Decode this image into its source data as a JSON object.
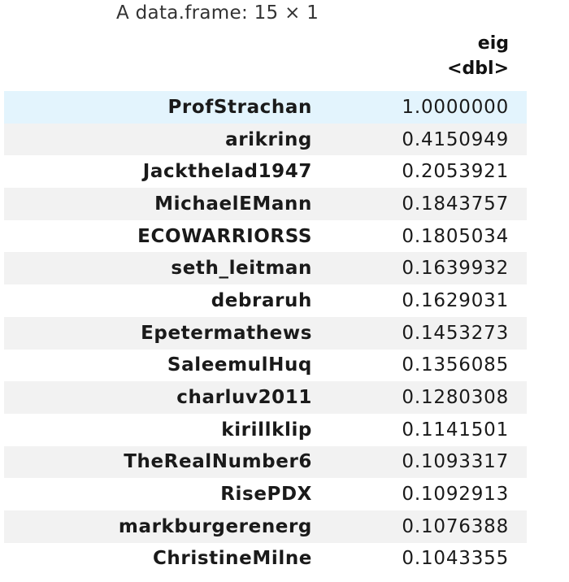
{
  "caption": "A data.frame: 15 × 1",
  "columns": [
    {
      "name": "eig",
      "type": "<dbl>"
    }
  ],
  "rows": [
    {
      "name": "ProfStrachan",
      "eig": "1.0000000"
    },
    {
      "name": "arikring",
      "eig": "0.4150949"
    },
    {
      "name": "Jackthelad1947",
      "eig": "0.2053921"
    },
    {
      "name": "MichaelEMann",
      "eig": "0.1843757"
    },
    {
      "name": "ECOWARRIORSS",
      "eig": "0.1805034"
    },
    {
      "name": "seth_leitman",
      "eig": "0.1639932"
    },
    {
      "name": "debraruh",
      "eig": "0.1629031"
    },
    {
      "name": "Epetermathews",
      "eig": "0.1453273"
    },
    {
      "name": "SaleemulHuq",
      "eig": "0.1356085"
    },
    {
      "name": "charluv2011",
      "eig": "0.1280308"
    },
    {
      "name": "kirillklip",
      "eig": "0.1141501"
    },
    {
      "name": "TheRealNumber6",
      "eig": "0.1093317"
    },
    {
      "name": "RisePDX",
      "eig": "0.1092913"
    },
    {
      "name": "markburgerenerg",
      "eig": "0.1076388"
    },
    {
      "name": "ChristineMilne",
      "eig": "0.1043355"
    }
  ],
  "colors": {
    "highlight_row": "#e3f4fd",
    "stripe_row": "#f2f2f2"
  }
}
